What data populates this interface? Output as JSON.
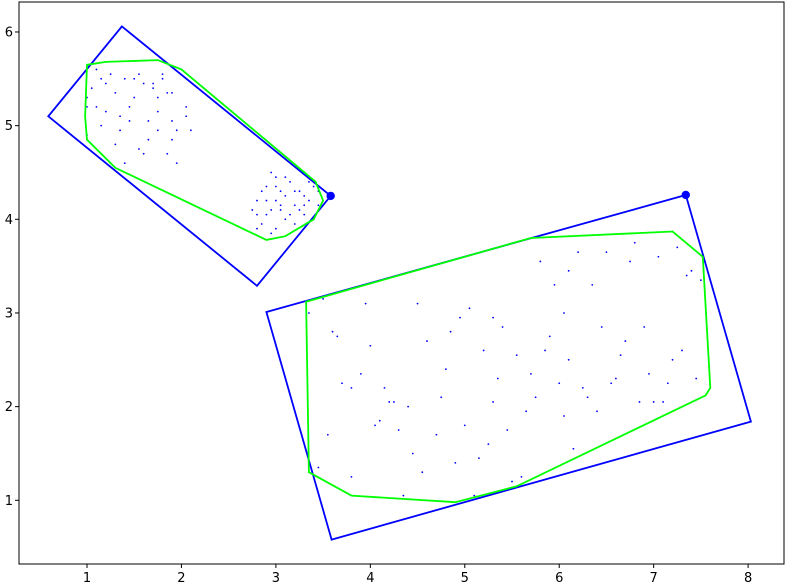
{
  "chart_data": {
    "type": "scatter",
    "title": "",
    "xlabel": "",
    "ylabel": "",
    "xlim": [
      0.28,
      8.38
    ],
    "ylim": [
      0.32,
      6.32
    ],
    "grid": false,
    "x_ticks": [
      "1",
      "2",
      "3",
      "4",
      "5",
      "6",
      "7",
      "8"
    ],
    "y_ticks": [
      "1",
      "2",
      "3",
      "4",
      "5",
      "6"
    ],
    "colors": {
      "points": "#0000ff",
      "bounding_box": "#0000ff",
      "hull": "#00ff00",
      "corner_marker": "#0000ff"
    },
    "clusters": [
      {
        "points": [
          [
            1.0,
            5.3
          ],
          [
            1.05,
            5.4
          ],
          [
            1.1,
            5.2
          ],
          [
            1.15,
            5.5
          ],
          [
            1.2,
            5.45
          ],
          [
            1.3,
            5.35
          ],
          [
            1.35,
            5.1
          ],
          [
            1.4,
            5.5
          ],
          [
            1.45,
            5.2
          ],
          [
            1.5,
            5.3
          ],
          [
            1.55,
            5.55
          ],
          [
            1.6,
            5.45
          ],
          [
            1.65,
            5.05
          ],
          [
            1.7,
            5.4
          ],
          [
            1.75,
            5.3
          ],
          [
            1.8,
            5.5
          ],
          [
            1.85,
            5.35
          ],
          [
            1.9,
            5.05
          ],
          [
            1.95,
            4.95
          ],
          [
            2.0,
            5.6
          ],
          [
            2.05,
            5.2
          ],
          [
            2.1,
            4.95
          ],
          [
            1.15,
            5.0
          ],
          [
            1.3,
            4.8
          ],
          [
            1.4,
            4.6
          ],
          [
            1.55,
            4.75
          ],
          [
            1.65,
            4.85
          ],
          [
            1.75,
            4.95
          ],
          [
            1.85,
            4.7
          ],
          [
            1.95,
            4.6
          ],
          [
            2.05,
            5.1
          ],
          [
            1.0,
            4.9
          ],
          [
            1.1,
            5.6
          ],
          [
            1.25,
            5.55
          ],
          [
            1.45,
            5.05
          ],
          [
            1.6,
            4.7
          ],
          [
            1.75,
            5.15
          ],
          [
            1.9,
            5.35
          ],
          [
            1.35,
            4.95
          ],
          [
            1.2,
            5.15
          ],
          [
            1.5,
            5.5
          ],
          [
            1.8,
            5.55
          ],
          [
            1.9,
            4.85
          ],
          [
            1.0,
            5.2
          ],
          [
            1.7,
            5.45
          ],
          [
            2.8,
            4.05
          ],
          [
            2.85,
            4.3
          ],
          [
            2.9,
            4.2
          ],
          [
            2.95,
            4.5
          ],
          [
            3.0,
            4.35
          ],
          [
            3.05,
            4.1
          ],
          [
            3.1,
            4.25
          ],
          [
            3.15,
            4.4
          ],
          [
            3.2,
            4.15
          ],
          [
            3.25,
            4.3
          ],
          [
            3.3,
            4.05
          ],
          [
            3.35,
            4.2
          ],
          [
            3.4,
            4.35
          ],
          [
            3.45,
            4.15
          ],
          [
            2.8,
            4.2
          ],
          [
            2.9,
            4.05
          ],
          [
            3.0,
            4.2
          ],
          [
            3.1,
            4.0
          ],
          [
            3.2,
            3.95
          ],
          [
            3.3,
            4.25
          ],
          [
            2.85,
            3.95
          ],
          [
            3.0,
            4.45
          ],
          [
            3.15,
            3.85
          ],
          [
            2.95,
            4.1
          ],
          [
            3.05,
            4.3
          ],
          [
            3.25,
            4.1
          ],
          [
            3.35,
            4.4
          ],
          [
            2.75,
            4.1
          ],
          [
            3.4,
            4.0
          ],
          [
            3.1,
            4.45
          ],
          [
            3.2,
            4.3
          ],
          [
            2.9,
            4.35
          ],
          [
            3.0,
            3.9
          ],
          [
            3.3,
            4.15
          ],
          [
            3.45,
            4.3
          ],
          [
            2.8,
            3.9
          ],
          [
            3.15,
            4.05
          ],
          [
            3.05,
            4.15
          ],
          [
            2.95,
            3.85
          ]
        ],
        "min_area_rect": [
          [
            1.37,
            6.06
          ],
          [
            3.58,
            4.25
          ],
          [
            2.8,
            3.29
          ],
          [
            0.59,
            5.1
          ]
        ],
        "convex_hull": [
          [
            1.0,
            5.65
          ],
          [
            1.2,
            5.68
          ],
          [
            1.75,
            5.7
          ],
          [
            2.0,
            5.6
          ],
          [
            3.42,
            4.4
          ],
          [
            3.5,
            4.2
          ],
          [
            3.4,
            4.0
          ],
          [
            3.1,
            3.82
          ],
          [
            2.9,
            3.78
          ],
          [
            1.3,
            4.55
          ],
          [
            1.0,
            4.85
          ],
          [
            0.98,
            5.1
          ]
        ],
        "corner_marker": [
          3.58,
          4.25
        ]
      },
      {
        "points": [
          [
            3.35,
            3.0
          ],
          [
            3.5,
            3.15
          ],
          [
            3.65,
            2.75
          ],
          [
            3.8,
            2.2
          ],
          [
            3.9,
            2.35
          ],
          [
            3.95,
            3.1
          ],
          [
            4.1,
            1.85
          ],
          [
            4.2,
            2.05
          ],
          [
            4.3,
            1.75
          ],
          [
            4.4,
            2.0
          ],
          [
            4.5,
            3.1
          ],
          [
            4.6,
            2.7
          ],
          [
            4.7,
            1.7
          ],
          [
            4.8,
            2.4
          ],
          [
            4.9,
            1.4
          ],
          [
            5.0,
            1.8
          ],
          [
            5.1,
            1.05
          ],
          [
            5.2,
            2.6
          ],
          [
            5.3,
            2.95
          ],
          [
            5.35,
            2.3
          ],
          [
            5.45,
            1.75
          ],
          [
            5.55,
            2.55
          ],
          [
            5.6,
            1.25
          ],
          [
            5.7,
            2.35
          ],
          [
            5.8,
            3.55
          ],
          [
            5.9,
            2.75
          ],
          [
            6.0,
            2.25
          ],
          [
            6.05,
            3.0
          ],
          [
            6.1,
            2.5
          ],
          [
            6.15,
            1.55
          ],
          [
            6.2,
            3.65
          ],
          [
            6.3,
            2.1
          ],
          [
            6.4,
            1.95
          ],
          [
            6.5,
            3.65
          ],
          [
            6.6,
            2.3
          ],
          [
            6.7,
            2.7
          ],
          [
            6.8,
            3.75
          ],
          [
            6.9,
            2.85
          ],
          [
            7.0,
            2.05
          ],
          [
            7.05,
            3.6
          ],
          [
            7.15,
            2.25
          ],
          [
            7.25,
            3.7
          ],
          [
            7.35,
            3.4
          ],
          [
            7.45,
            2.3
          ],
          [
            7.5,
            3.35
          ],
          [
            3.55,
            1.7
          ],
          [
            3.8,
            1.25
          ],
          [
            4.05,
            1.8
          ],
          [
            4.35,
            1.05
          ],
          [
            4.55,
            1.3
          ],
          [
            4.75,
            2.1
          ],
          [
            4.95,
            2.95
          ],
          [
            5.25,
            1.6
          ],
          [
            5.5,
            1.2
          ],
          [
            5.75,
            2.1
          ],
          [
            5.95,
            3.3
          ],
          [
            6.25,
            2.2
          ],
          [
            6.45,
            2.85
          ],
          [
            6.65,
            2.55
          ],
          [
            6.95,
            2.35
          ],
          [
            7.2,
            2.5
          ],
          [
            3.45,
            1.35
          ],
          [
            3.7,
            2.25
          ],
          [
            4.15,
            2.2
          ],
          [
            4.45,
            1.5
          ],
          [
            4.85,
            2.8
          ],
          [
            5.05,
            3.05
          ],
          [
            5.4,
            2.85
          ],
          [
            5.65,
            1.95
          ],
          [
            5.85,
            2.6
          ],
          [
            6.1,
            3.45
          ],
          [
            6.35,
            3.3
          ],
          [
            6.55,
            2.25
          ],
          [
            6.75,
            3.55
          ],
          [
            7.1,
            2.05
          ],
          [
            7.4,
            3.45
          ],
          [
            3.6,
            2.8
          ],
          [
            4.0,
            2.65
          ],
          [
            4.25,
            2.05
          ],
          [
            5.15,
            1.45
          ],
          [
            5.3,
            2.05
          ],
          [
            6.05,
            1.9
          ],
          [
            6.85,
            2.05
          ],
          [
            7.3,
            2.6
          ]
        ],
        "min_area_rect": [
          [
            7.34,
            4.26
          ],
          [
            8.03,
            1.84
          ],
          [
            3.59,
            0.58
          ],
          [
            2.9,
            3.01
          ]
        ],
        "convex_hull": [
          [
            3.32,
            3.12
          ],
          [
            3.35,
            1.3
          ],
          [
            3.8,
            1.05
          ],
          [
            4.9,
            0.98
          ],
          [
            5.55,
            1.15
          ],
          [
            7.55,
            2.12
          ],
          [
            7.6,
            2.2
          ],
          [
            7.52,
            3.6
          ],
          [
            7.2,
            3.87
          ],
          [
            5.7,
            3.8
          ]
        ],
        "corner_marker": [
          7.34,
          4.26
        ]
      }
    ]
  }
}
